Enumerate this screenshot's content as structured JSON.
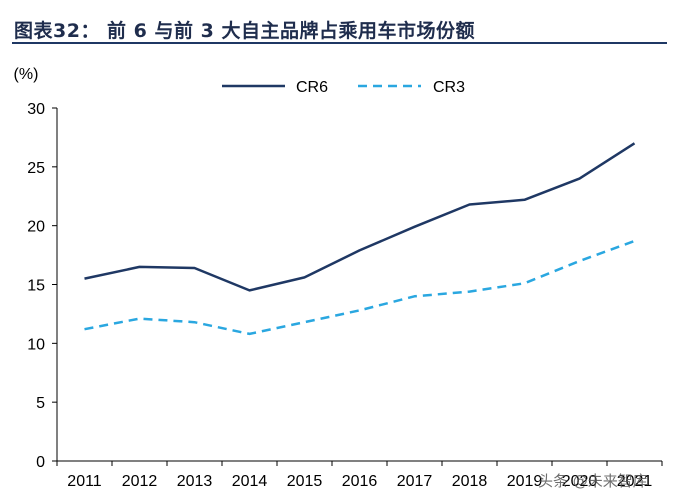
{
  "header": {
    "title": "图表32： 前 6 与前 3 大自主品牌占乘用车市场份额"
  },
  "watermark": {
    "text": "头条 @未来智库"
  },
  "chart_data": {
    "type": "line",
    "title": "图表32： 前 6 与前 3 大自主品牌占乘用车市场份额",
    "ylabel": "(%)",
    "xlabel": "",
    "x": [
      "2011",
      "2012",
      "2013",
      "2014",
      "2015",
      "2016",
      "2017",
      "2018",
      "2019",
      "2020",
      "2021"
    ],
    "ylim": [
      0,
      30
    ],
    "yticks": [
      0,
      5,
      10,
      15,
      20,
      25,
      30
    ],
    "grid": false,
    "legend": "top-center",
    "series": [
      {
        "name": "CR6",
        "style": "solid",
        "color": "#1f3864",
        "values": [
          15.5,
          16.5,
          16.4,
          14.5,
          15.6,
          17.9,
          19.9,
          21.8,
          22.2,
          24.0,
          27.0
        ]
      },
      {
        "name": "CR3",
        "style": "dashed",
        "color": "#2aa7e0",
        "values": [
          11.2,
          12.1,
          11.8,
          10.8,
          11.8,
          12.8,
          14.0,
          14.4,
          15.1,
          17.0,
          18.7
        ]
      }
    ]
  }
}
